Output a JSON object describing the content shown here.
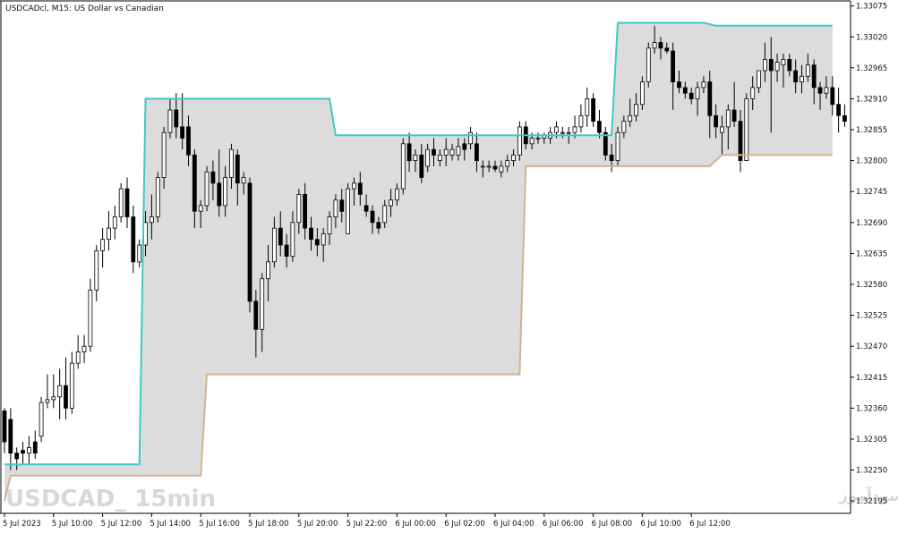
{
  "chart_data": {
    "type": "candlestick",
    "title": "USDCADcl, M15:  US Dollar vs Canadian",
    "watermark_left": "USDCAD_ 15min",
    "watermark_right": "انتشار در سایت سودآموز",
    "y_ticks": [
      "1.33075",
      "1.33020",
      "1.32965",
      "1.32910",
      "1.32855",
      "1.32800",
      "1.32745",
      "1.32690",
      "1.32635",
      "1.32580",
      "1.32525",
      "1.32470",
      "1.32415",
      "1.32360",
      "1.32305",
      "1.32250",
      "1.32195"
    ],
    "x_ticks": [
      "5 Jul 2023",
      "5 Jul 10:00",
      "5 Jul 12:00",
      "5 Jul 14:00",
      "5 Jul 16:00",
      "5 Jul 18:00",
      "5 Jul 20:00",
      "5 Jul 22:00",
      "6 Jul 00:00",
      "6 Jul 02:00",
      "6 Jul 04:00",
      "6 Jul 06:00",
      "6 Jul 08:00",
      "6 Jul 10:00",
      "6 Jul 12:00"
    ],
    "ylim": [
      1.32173,
      1.33084
    ],
    "grid": false,
    "legend": "none",
    "colors": {
      "upper_band": "#40c8c8",
      "lower_band": "#d2b48c",
      "band_fill": "#dcdcdc",
      "candle_bull_body": "#ffffff",
      "candle_bear_body": "#000000",
      "candle_outline": "#000000",
      "axis": "#000000"
    },
    "candles_ohlc": [
      [
        1.32355,
        1.3236,
        1.3228,
        1.323
      ],
      [
        1.3234,
        1.3236,
        1.3225,
        1.3228
      ],
      [
        1.3228,
        1.3229,
        1.3225,
        1.3227
      ],
      [
        1.32285,
        1.323,
        1.3226,
        1.3228
      ],
      [
        1.3228,
        1.3231,
        1.3226,
        1.3229
      ],
      [
        1.323,
        1.3232,
        1.3227,
        1.3228
      ],
      [
        1.3231,
        1.3238,
        1.323,
        1.3237
      ],
      [
        1.3237,
        1.3242,
        1.3236,
        1.32375
      ],
      [
        1.32375,
        1.3242,
        1.3236,
        1.3238
      ],
      [
        1.3238,
        1.3243,
        1.3234,
        1.324
      ],
      [
        1.324,
        1.3245,
        1.3234,
        1.3236
      ],
      [
        1.3236,
        1.3246,
        1.3235,
        1.3244
      ],
      [
        1.3244,
        1.3249,
        1.3243,
        1.3246
      ],
      [
        1.3246,
        1.3249,
        1.3244,
        1.3247
      ],
      [
        1.3247,
        1.3259,
        1.3246,
        1.3257
      ],
      [
        1.3257,
        1.3265,
        1.3255,
        1.3264
      ],
      [
        1.3264,
        1.3268,
        1.3261,
        1.3266
      ],
      [
        1.3266,
        1.3271,
        1.3264,
        1.3268
      ],
      [
        1.3268,
        1.3272,
        1.3266,
        1.327
      ],
      [
        1.327,
        1.3276,
        1.3269,
        1.3275
      ],
      [
        1.3275,
        1.3277,
        1.3268,
        1.327
      ],
      [
        1.327,
        1.3272,
        1.326,
        1.3262
      ],
      [
        1.3262,
        1.3266,
        1.3261,
        1.3265
      ],
      [
        1.3265,
        1.3271,
        1.3263,
        1.3269
      ],
      [
        1.3269,
        1.3274,
        1.3266,
        1.327
      ],
      [
        1.327,
        1.3278,
        1.3269,
        1.3277
      ],
      [
        1.3277,
        1.3286,
        1.3275,
        1.3285
      ],
      [
        1.3285,
        1.3291,
        1.3284,
        1.3289
      ],
      [
        1.3289,
        1.3292,
        1.3284,
        1.3286
      ],
      [
        1.3286,
        1.3292,
        1.3282,
        1.3284
      ],
      [
        1.3286,
        1.3288,
        1.3279,
        1.3281
      ],
      [
        1.3281,
        1.3282,
        1.3268,
        1.3271
      ],
      [
        1.3271,
        1.3273,
        1.3268,
        1.3272
      ],
      [
        1.3272,
        1.3279,
        1.3271,
        1.3278
      ],
      [
        1.3278,
        1.328,
        1.3273,
        1.3276
      ],
      [
        1.3276,
        1.3282,
        1.327,
        1.3272
      ],
      [
        1.3272,
        1.3279,
        1.327,
        1.3277
      ],
      [
        1.3277,
        1.3283,
        1.3275,
        1.3282
      ],
      [
        1.3281,
        1.3282,
        1.3272,
        1.3276
      ],
      [
        1.3276,
        1.3278,
        1.3274,
        1.3277
      ],
      [
        1.3276,
        1.3277,
        1.3253,
        1.3255
      ],
      [
        1.3255,
        1.3257,
        1.3245,
        1.325
      ],
      [
        1.325,
        1.326,
        1.3246,
        1.3259
      ],
      [
        1.3259,
        1.3265,
        1.3255,
        1.3262
      ],
      [
        1.3262,
        1.327,
        1.3261,
        1.3268
      ],
      [
        1.3268,
        1.3271,
        1.3263,
        1.3265
      ],
      [
        1.3265,
        1.3267,
        1.3261,
        1.3263
      ],
      [
        1.3263,
        1.3271,
        1.3262,
        1.3269
      ],
      [
        1.3269,
        1.3275,
        1.3267,
        1.3274
      ],
      [
        1.3274,
        1.3276,
        1.3266,
        1.3268
      ],
      [
        1.3268,
        1.327,
        1.3264,
        1.3266
      ],
      [
        1.3266,
        1.3268,
        1.3263,
        1.3265
      ],
      [
        1.3265,
        1.3268,
        1.3262,
        1.3267
      ],
      [
        1.3267,
        1.3271,
        1.3265,
        1.327
      ],
      [
        1.327,
        1.3274,
        1.3268,
        1.3273
      ],
      [
        1.3273,
        1.3275,
        1.3269,
        1.3271
      ],
      [
        1.3267,
        1.3276,
        1.3267,
        1.3275
      ],
      [
        1.3275,
        1.3277,
        1.3272,
        1.3276
      ],
      [
        1.3276,
        1.3278,
        1.3272,
        1.3274
      ],
      [
        1.3272,
        1.3274,
        1.327,
        1.3271
      ],
      [
        1.3271,
        1.3272,
        1.3267,
        1.3269
      ],
      [
        1.3269,
        1.327,
        1.3267,
        1.3268
      ],
      [
        1.3269,
        1.3273,
        1.3268,
        1.3272
      ],
      [
        1.3272,
        1.3275,
        1.327,
        1.3273
      ],
      [
        1.3273,
        1.3276,
        1.3272,
        1.3275
      ],
      [
        1.3275,
        1.3284,
        1.3274,
        1.3283
      ],
      [
        1.3283,
        1.3285,
        1.3278,
        1.328
      ],
      [
        1.328,
        1.3282,
        1.3278,
        1.3281
      ],
      [
        1.3281,
        1.3283,
        1.3276,
        1.3277
      ],
      [
        1.3279,
        1.3283,
        1.3278,
        1.3282
      ],
      [
        1.3282,
        1.3284,
        1.3279,
        1.3281
      ],
      [
        1.328,
        1.3282,
        1.3279,
        1.3281
      ],
      [
        1.3281,
        1.3284,
        1.3279,
        1.3282
      ],
      [
        1.3281,
        1.3283,
        1.328,
        1.3282
      ],
      [
        1.3281,
        1.3284,
        1.328,
        1.32825
      ],
      [
        1.3283,
        1.3284,
        1.328,
        1.3282
      ],
      [
        1.3283,
        1.3286,
        1.3282,
        1.3285
      ],
      [
        1.3283,
        1.3285,
        1.3278,
        1.328
      ],
      [
        1.3279,
        1.328,
        1.3277,
        1.3279
      ],
      [
        1.3279,
        1.328,
        1.3278,
        1.3279
      ],
      [
        1.3279,
        1.328,
        1.3278,
        1.32785
      ],
      [
        1.3278,
        1.328,
        1.3277,
        1.3279
      ],
      [
        1.3279,
        1.3281,
        1.3278,
        1.328
      ],
      [
        1.328,
        1.3282,
        1.3279,
        1.3281
      ],
      [
        1.3281,
        1.3287,
        1.328,
        1.3286
      ],
      [
        1.3286,
        1.3287,
        1.3282,
        1.3283
      ],
      [
        1.3283,
        1.3285,
        1.3282,
        1.3284
      ],
      [
        1.3284,
        1.3285,
        1.3283,
        1.3284
      ],
      [
        1.3284,
        1.3285,
        1.3283,
        1.32845
      ],
      [
        1.3284,
        1.3286,
        1.3283,
        1.3285
      ],
      [
        1.3285,
        1.3287,
        1.3284,
        1.3286
      ],
      [
        1.3285,
        1.3286,
        1.3284,
        1.3285
      ],
      [
        1.3285,
        1.3286,
        1.3283,
        1.3285
      ],
      [
        1.3285,
        1.3288,
        1.3284,
        1.3286
      ],
      [
        1.3286,
        1.329,
        1.3285,
        1.3288
      ],
      [
        1.3288,
        1.3293,
        1.3286,
        1.3291
      ],
      [
        1.3291,
        1.3292,
        1.3286,
        1.3287
      ],
      [
        1.3287,
        1.3289,
        1.3284,
        1.3285
      ],
      [
        1.3285,
        1.3286,
        1.328,
        1.3281
      ],
      [
        1.3281,
        1.3283,
        1.3278,
        1.328
      ],
      [
        1.328,
        1.3286,
        1.3279,
        1.3285
      ],
      [
        1.3285,
        1.3288,
        1.3284,
        1.3287
      ],
      [
        1.3287,
        1.3291,
        1.3286,
        1.3288
      ],
      [
        1.3288,
        1.3292,
        1.3287,
        1.329
      ],
      [
        1.329,
        1.3295,
        1.3289,
        1.3294
      ],
      [
        1.3294,
        1.3301,
        1.3293,
        1.33
      ],
      [
        1.33,
        1.3304,
        1.3299,
        1.3301
      ],
      [
        1.3301,
        1.3302,
        1.3298,
        1.33
      ],
      [
        1.33,
        1.3301,
        1.3299,
        1.32995
      ],
      [
        1.32995,
        1.3301,
        1.3289,
        1.3294
      ],
      [
        1.3294,
        1.3296,
        1.3292,
        1.3293
      ],
      [
        1.3293,
        1.3294,
        1.3291,
        1.3292
      ],
      [
        1.3292,
        1.3293,
        1.329,
        1.3291
      ],
      [
        1.3291,
        1.3294,
        1.3288,
        1.3293
      ],
      [
        1.3293,
        1.3295,
        1.3292,
        1.3294
      ],
      [
        1.3294,
        1.3296,
        1.3284,
        1.3288
      ],
      [
        1.3288,
        1.329,
        1.3284,
        1.3286
      ],
      [
        1.3285,
        1.3288,
        1.3281,
        1.3286
      ],
      [
        1.3286,
        1.329,
        1.3282,
        1.3289
      ],
      [
        1.3289,
        1.3294,
        1.3286,
        1.3287
      ],
      [
        1.3287,
        1.3289,
        1.3278,
        1.328
      ],
      [
        1.328,
        1.3292,
        1.328,
        1.3291
      ],
      [
        1.3291,
        1.3295,
        1.3289,
        1.3293
      ],
      [
        1.3293,
        1.3296,
        1.3292,
        1.3296
      ],
      [
        1.3296,
        1.3301,
        1.3294,
        1.3298
      ],
      [
        1.3298,
        1.3302,
        1.3285,
        1.3296
      ],
      [
        1.3296,
        1.3299,
        1.3294,
        1.32975
      ],
      [
        1.3297,
        1.3299,
        1.3293,
        1.3298
      ],
      [
        1.3298,
        1.3299,
        1.3295,
        1.3296
      ],
      [
        1.3296,
        1.3298,
        1.3292,
        1.3294
      ],
      [
        1.3294,
        1.3297,
        1.3292,
        1.3295
      ],
      [
        1.3295,
        1.3299,
        1.3294,
        1.3297
      ],
      [
        1.3297,
        1.3298,
        1.329,
        1.3293
      ],
      [
        1.3293,
        1.3294,
        1.3289,
        1.3292
      ],
      [
        1.3292,
        1.3295,
        1.3291,
        1.3293
      ],
      [
        1.3293,
        1.3295,
        1.3288,
        1.329
      ],
      [
        1.329,
        1.3293,
        1.3285,
        1.3288
      ],
      [
        1.3288,
        1.329,
        1.3286,
        1.3287
      ],
      [
        1.3287,
        1.3288,
        1.3278,
        1.3281
      ],
      [
        1.3281,
        1.3282,
        1.3278,
        1.3279
      ]
    ],
    "upper_band_points": [
      [
        0,
        1.3226
      ],
      [
        22,
        1.3226
      ],
      [
        23,
        1.3291
      ],
      [
        40,
        1.3291
      ],
      [
        41,
        1.3291
      ],
      [
        53,
        1.3291
      ],
      [
        54,
        1.32845
      ],
      [
        82,
        1.32845
      ],
      [
        83,
        1.32845
      ],
      [
        98,
        1.32845
      ],
      [
        99,
        1.32845
      ],
      [
        100,
        1.33045
      ],
      [
        114,
        1.33045
      ],
      [
        116,
        1.3304
      ],
      [
        135,
        1.3304
      ]
    ],
    "lower_band_points": [
      [
        0,
        1.32195
      ],
      [
        1,
        1.3224
      ],
      [
        31,
        1.3224
      ],
      [
        32,
        1.3224
      ],
      [
        33,
        1.3242
      ],
      [
        84,
        1.3242
      ],
      [
        85,
        1.3279
      ],
      [
        115,
        1.3279
      ],
      [
        117,
        1.3281
      ],
      [
        135,
        1.3281
      ]
    ]
  }
}
